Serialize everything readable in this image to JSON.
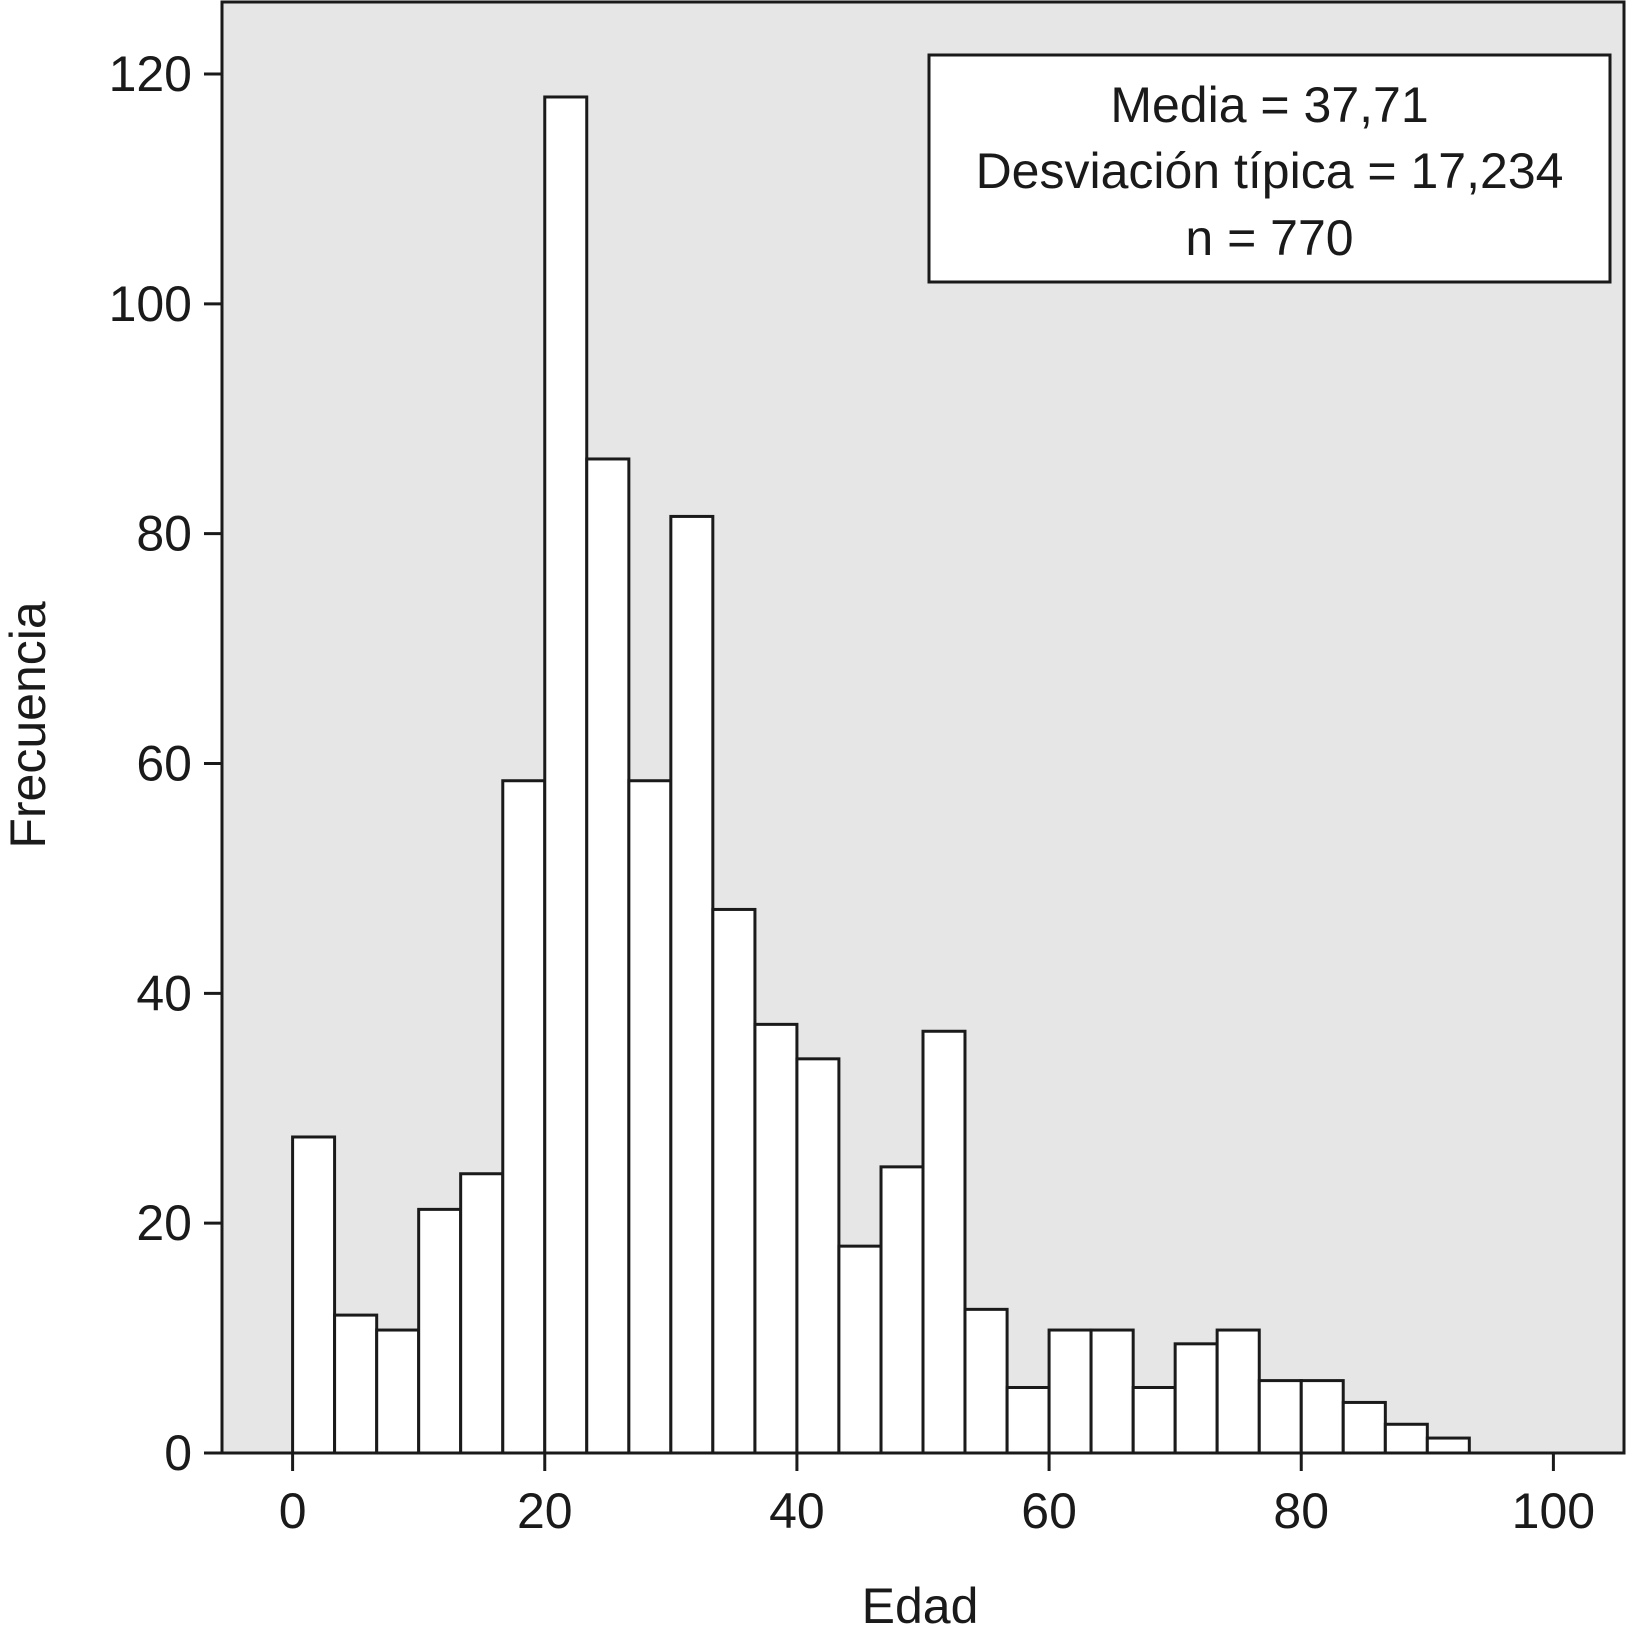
{
  "chart_data": {
    "type": "bar",
    "subtype": "histogram",
    "title": "",
    "xlabel": "Edad",
    "ylabel": "Frecuencia",
    "xlim": [
      -5.6,
      105.6
    ],
    "ylim": [
      0,
      120
    ],
    "x_ticks": [
      0,
      20,
      40,
      60,
      80,
      100
    ],
    "y_ticks": [
      0,
      20,
      40,
      60,
      80,
      100,
      120
    ],
    "bin_width": 3.33,
    "bins": [
      {
        "start": 0.0,
        "end": 3.33,
        "value": 27.5
      },
      {
        "start": 3.33,
        "end": 6.67,
        "value": 12
      },
      {
        "start": 6.67,
        "end": 10.0,
        "value": 10.7
      },
      {
        "start": 10.0,
        "end": 13.33,
        "value": 21.2
      },
      {
        "start": 13.33,
        "end": 16.67,
        "value": 24.3
      },
      {
        "start": 16.67,
        "end": 20.0,
        "value": 58.5
      },
      {
        "start": 20.0,
        "end": 23.33,
        "value": 118
      },
      {
        "start": 23.33,
        "end": 26.67,
        "value": 86.5
      },
      {
        "start": 26.67,
        "end": 30.0,
        "value": 58.5
      },
      {
        "start": 30.0,
        "end": 33.33,
        "value": 81.5
      },
      {
        "start": 33.33,
        "end": 36.67,
        "value": 47.3
      },
      {
        "start": 36.67,
        "end": 40.0,
        "value": 37.3
      },
      {
        "start": 40.0,
        "end": 43.33,
        "value": 34.3
      },
      {
        "start": 43.33,
        "end": 46.67,
        "value": 18.0
      },
      {
        "start": 46.67,
        "end": 50.0,
        "value": 24.9
      },
      {
        "start": 50.0,
        "end": 53.33,
        "value": 36.7
      },
      {
        "start": 53.33,
        "end": 56.67,
        "value": 12.5
      },
      {
        "start": 56.67,
        "end": 60.0,
        "value": 5.7
      },
      {
        "start": 60.0,
        "end": 63.33,
        "value": 10.7
      },
      {
        "start": 63.33,
        "end": 66.67,
        "value": 10.7
      },
      {
        "start": 66.67,
        "end": 70.0,
        "value": 5.7
      },
      {
        "start": 70.0,
        "end": 73.33,
        "value": 9.5
      },
      {
        "start": 73.33,
        "end": 76.67,
        "value": 10.7
      },
      {
        "start": 76.67,
        "end": 80.0,
        "value": 6.3
      },
      {
        "start": 80.0,
        "end": 83.33,
        "value": 6.3
      },
      {
        "start": 83.33,
        "end": 86.67,
        "value": 4.4
      },
      {
        "start": 86.67,
        "end": 90.0,
        "value": 2.5
      },
      {
        "start": 90.0,
        "end": 93.33,
        "value": 1.3
      }
    ],
    "stats_box": {
      "position": "top-right",
      "lines": [
        "Media = 37,71",
        "Desviación típica = 17,234",
        "n = 770"
      ]
    },
    "grid": false,
    "colors": {
      "plot_background": "#e6e6e6",
      "bar_fill": "#ffffff",
      "bar_stroke": "#1a1a1a",
      "axis": "#1a1a1a",
      "stats_box_fill": "#ffffff"
    }
  }
}
